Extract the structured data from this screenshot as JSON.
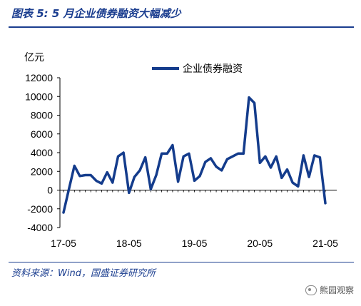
{
  "figure": {
    "title": "图表 5:  5 月企业债券融资大幅减少",
    "source": "资料来源：Wind，国盛证券研究所",
    "watermark": "熊园观察"
  },
  "colors": {
    "series": "#143c8c",
    "accent": "#1a3d8f"
  },
  "chart_data": {
    "type": "line",
    "title": "",
    "ylabel": "亿元",
    "xlabel": "",
    "ylim": [
      -4000,
      12000
    ],
    "yticks": [
      -4000,
      -2000,
      0,
      2000,
      4000,
      6000,
      8000,
      10000,
      12000
    ],
    "ytick_labels": [
      "-4000",
      "-2000",
      "0",
      "2000",
      "4000",
      "6000",
      "8000",
      "10000",
      "12000"
    ],
    "xtick_labels": [
      "17-05",
      "18-05",
      "19-05",
      "20-05",
      "21-05"
    ],
    "legend": "top",
    "grid": false,
    "series": [
      {
        "name": "企业债券融资",
        "values": [
          -2400,
          100,
          2600,
          1500,
          1600,
          1600,
          1000,
          700,
          1900,
          800,
          3600,
          4000,
          -300,
          1400,
          2100,
          3500,
          100,
          1600,
          3900,
          3900,
          4800,
          900,
          3600,
          3900,
          1000,
          1500,
          3000,
          3400,
          2500,
          2100,
          3300,
          3600,
          3900,
          3900,
          9900,
          9300,
          2900,
          3600,
          2400,
          3600,
          1300,
          2200,
          800,
          400,
          3700,
          1400,
          3700,
          3500,
          -1400
        ]
      }
    ]
  }
}
